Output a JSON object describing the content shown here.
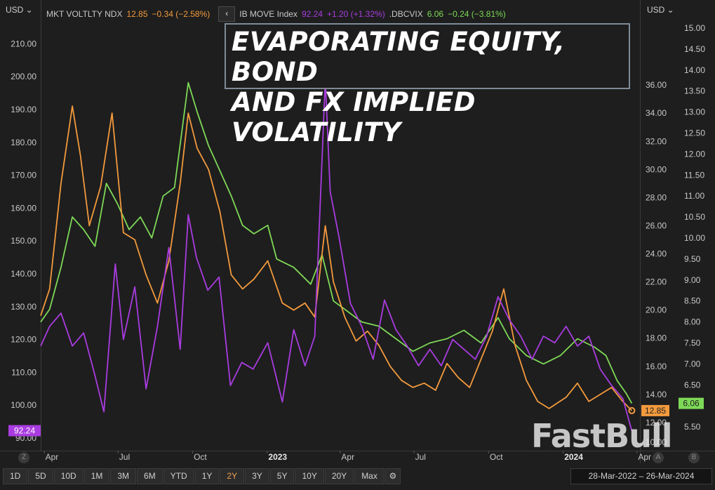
{
  "header": {
    "unit_left": "USD",
    "unit_right": "USD",
    "legend": [
      {
        "name": "MKT VOLTLTY NDX",
        "value": "12.85",
        "change": "−0.34 (−2.58%)",
        "color": "#f39a3d"
      },
      {
        "name": "IB MOVE Index",
        "value": "92.24",
        "change": "+1.20 (+1.32%)",
        "color": "#a93ce0"
      },
      {
        "name": ".DBCVIX",
        "value": "6.06",
        "change": "−0.24 (−3.81%)",
        "color": "#7ed957"
      }
    ],
    "collapse_icon": "chevron-left-icon"
  },
  "title_lines": [
    "EVAPORATING EQUITY, BOND",
    "AND FX IMPLIED VOLATILITY"
  ],
  "watermark": "FastBull",
  "price_tags": {
    "move": "92.24",
    "ndx": "12.85",
    "vix": "6.06"
  },
  "toolbar": {
    "buttons": [
      "1D",
      "5D",
      "10D",
      "1M",
      "3M",
      "6M",
      "YTD",
      "1Y",
      "2Y",
      "3Y",
      "5Y",
      "10Y",
      "20Y",
      "Max"
    ],
    "active": "2Y",
    "gear_icon": "gear-icon",
    "date_range": "28-Mar-2022  –  26-Mar-2024"
  },
  "corner_labels": {
    "left": "Z",
    "a": "A",
    "b": "B"
  },
  "colors": {
    "ndx": "#f39a3d",
    "move": "#a93ce0",
    "vix": "#7ed957",
    "background": "#1e1e1e"
  },
  "chart_data": {
    "type": "line",
    "x_tick_labels": [
      "Apr",
      "Jul",
      "Oct",
      "2023",
      "Apr",
      "Jul",
      "Oct",
      "2024",
      "Apr"
    ],
    "x_tick_dates": [
      "2022-04-01",
      "2022-07-01",
      "2022-10-01",
      "2023-01-01",
      "2023-04-01",
      "2023-07-01",
      "2023-10-01",
      "2024-01-01",
      "2024-04-01"
    ],
    "xlim": [
      "2022-03-28",
      "2024-04-05"
    ],
    "axes": {
      "move": {
        "ylim": [
          87,
          218
        ],
        "ticks": [
          90,
          100,
          110,
          120,
          130,
          140,
          150,
          160,
          170,
          180,
          190,
          200,
          210
        ]
      },
      "ndx": {
        "ylim": [
          10.2,
          40.8
        ],
        "ticks": [
          12,
          14,
          16,
          18,
          20,
          22,
          24,
          26,
          28,
          30,
          32,
          34,
          36
        ]
      },
      "vix": {
        "ylim": [
          5.0,
          15.25
        ],
        "ticks": [
          5.5,
          6.0,
          6.5,
          7.0,
          7.5,
          8.0,
          8.5,
          9.0,
          9.5,
          10.0,
          10.5,
          11.0,
          11.5,
          12.0,
          12.5,
          13.0,
          13.5,
          14.0,
          14.5,
          15.0
        ]
      },
      "overlap_tick_label": "10.00"
    },
    "series": [
      {
        "name": "IB MOVE Index",
        "key": "move",
        "points": [
          [
            "2022-03-28",
            118
          ],
          [
            "2022-04-08",
            124
          ],
          [
            "2022-04-22",
            128
          ],
          [
            "2022-05-06",
            118
          ],
          [
            "2022-05-20",
            122
          ],
          [
            "2022-06-03",
            109
          ],
          [
            "2022-06-14",
            98
          ],
          [
            "2022-06-28",
            143
          ],
          [
            "2022-07-08",
            120
          ],
          [
            "2022-07-22",
            136
          ],
          [
            "2022-08-05",
            105
          ],
          [
            "2022-08-19",
            124
          ],
          [
            "2022-09-02",
            148
          ],
          [
            "2022-09-16",
            117
          ],
          [
            "2022-09-26",
            158
          ],
          [
            "2022-10-06",
            145
          ],
          [
            "2022-10-20",
            135
          ],
          [
            "2022-11-03",
            139
          ],
          [
            "2022-11-17",
            106
          ],
          [
            "2022-12-01",
            113
          ],
          [
            "2022-12-15",
            111
          ],
          [
            "2023-01-02",
            119
          ],
          [
            "2023-01-20",
            101
          ],
          [
            "2023-02-03",
            123
          ],
          [
            "2023-02-17",
            112
          ],
          [
            "2023-03-01",
            121
          ],
          [
            "2023-03-14",
            199
          ],
          [
            "2023-03-20",
            165
          ],
          [
            "2023-03-31",
            151
          ],
          [
            "2023-04-14",
            131
          ],
          [
            "2023-04-28",
            124
          ],
          [
            "2023-05-12",
            114
          ],
          [
            "2023-05-26",
            132
          ],
          [
            "2023-06-09",
            123
          ],
          [
            "2023-06-23",
            118
          ],
          [
            "2023-07-07",
            112
          ],
          [
            "2023-07-21",
            117
          ],
          [
            "2023-08-04",
            112
          ],
          [
            "2023-08-18",
            120
          ],
          [
            "2023-09-01",
            117
          ],
          [
            "2023-09-15",
            114
          ],
          [
            "2023-09-29",
            121
          ],
          [
            "2023-10-13",
            133
          ],
          [
            "2023-10-27",
            126
          ],
          [
            "2023-11-10",
            121
          ],
          [
            "2023-11-24",
            114
          ],
          [
            "2023-12-08",
            121
          ],
          [
            "2023-12-22",
            119
          ],
          [
            "2024-01-05",
            124
          ],
          [
            "2024-01-19",
            118
          ],
          [
            "2024-02-02",
            121
          ],
          [
            "2024-02-16",
            111
          ],
          [
            "2024-03-01",
            106
          ],
          [
            "2024-03-15",
            102
          ],
          [
            "2024-03-26",
            92.24
          ]
        ]
      },
      {
        "name": "MKT VOLTLTY NDX",
        "key": "ndx",
        "points": [
          [
            "2022-03-28",
            19.6
          ],
          [
            "2022-04-08",
            21.5
          ],
          [
            "2022-04-22",
            29
          ],
          [
            "2022-05-06",
            34.5
          ],
          [
            "2022-05-16",
            31
          ],
          [
            "2022-05-27",
            26
          ],
          [
            "2022-06-10",
            28.8
          ],
          [
            "2022-06-24",
            34
          ],
          [
            "2022-07-08",
            25.5
          ],
          [
            "2022-07-22",
            25
          ],
          [
            "2022-08-05",
            22.5
          ],
          [
            "2022-08-19",
            20.5
          ],
          [
            "2022-09-02",
            23.5
          ],
          [
            "2022-09-16",
            29
          ],
          [
            "2022-09-26",
            34
          ],
          [
            "2022-10-07",
            31.5
          ],
          [
            "2022-10-21",
            30
          ],
          [
            "2022-11-04",
            27
          ],
          [
            "2022-11-18",
            22.5
          ],
          [
            "2022-12-02",
            21.5
          ],
          [
            "2022-12-16",
            22.2
          ],
          [
            "2023-01-02",
            23.5
          ],
          [
            "2023-01-20",
            20.5
          ],
          [
            "2023-02-03",
            20
          ],
          [
            "2023-02-17",
            20.5
          ],
          [
            "2023-03-01",
            19.5
          ],
          [
            "2023-03-14",
            26
          ],
          [
            "2023-03-24",
            22
          ],
          [
            "2023-04-07",
            19.5
          ],
          [
            "2023-04-21",
            17.8
          ],
          [
            "2023-05-05",
            18.5
          ],
          [
            "2023-05-19",
            17.5
          ],
          [
            "2023-06-02",
            16
          ],
          [
            "2023-06-16",
            15
          ],
          [
            "2023-06-30",
            14.5
          ],
          [
            "2023-07-14",
            14.8
          ],
          [
            "2023-07-28",
            14.3
          ],
          [
            "2023-08-11",
            16.2
          ],
          [
            "2023-08-25",
            15.2
          ],
          [
            "2023-09-08",
            14.5
          ],
          [
            "2023-09-22",
            16.5
          ],
          [
            "2023-10-06",
            18.5
          ],
          [
            "2023-10-20",
            21.5
          ],
          [
            "2023-11-03",
            17.5
          ],
          [
            "2023-11-17",
            15
          ],
          [
            "2023-12-01",
            13.5
          ],
          [
            "2023-12-15",
            13
          ],
          [
            "2024-01-05",
            13.8
          ],
          [
            "2024-01-19",
            14.8
          ],
          [
            "2024-02-02",
            13.5
          ],
          [
            "2024-02-16",
            14
          ],
          [
            "2024-03-01",
            14.5
          ],
          [
            "2024-03-15",
            13.5
          ],
          [
            "2024-03-26",
            12.85
          ]
        ]
      },
      {
        "name": ".DBCVIX",
        "key": "vix",
        "points": [
          [
            "2022-03-28",
            8.0
          ],
          [
            "2022-04-08",
            8.3
          ],
          [
            "2022-04-22",
            9.3
          ],
          [
            "2022-05-06",
            10.5
          ],
          [
            "2022-05-20",
            10.2
          ],
          [
            "2022-06-03",
            9.8
          ],
          [
            "2022-06-17",
            11.3
          ],
          [
            "2022-07-01",
            10.8
          ],
          [
            "2022-07-15",
            10.2
          ],
          [
            "2022-07-29",
            10.5
          ],
          [
            "2022-08-12",
            10.0
          ],
          [
            "2022-08-26",
            11.0
          ],
          [
            "2022-09-09",
            11.2
          ],
          [
            "2022-09-26",
            13.7
          ],
          [
            "2022-10-07",
            13.0
          ],
          [
            "2022-10-21",
            12.2
          ],
          [
            "2022-11-04",
            11.6
          ],
          [
            "2022-11-18",
            11.0
          ],
          [
            "2022-12-02",
            10.3
          ],
          [
            "2022-12-16",
            10.1
          ],
          [
            "2023-01-02",
            10.3
          ],
          [
            "2023-01-13",
            9.5
          ],
          [
            "2023-02-03",
            9.3
          ],
          [
            "2023-02-24",
            8.9
          ],
          [
            "2023-03-10",
            9.6
          ],
          [
            "2023-03-24",
            8.5
          ],
          [
            "2023-04-07",
            8.3
          ],
          [
            "2023-04-28",
            8.0
          ],
          [
            "2023-05-19",
            7.9
          ],
          [
            "2023-06-09",
            7.6
          ],
          [
            "2023-06-30",
            7.3
          ],
          [
            "2023-07-21",
            7.5
          ],
          [
            "2023-08-11",
            7.6
          ],
          [
            "2023-09-01",
            7.8
          ],
          [
            "2023-09-22",
            7.5
          ],
          [
            "2023-10-13",
            8.1
          ],
          [
            "2023-10-27",
            7.6
          ],
          [
            "2023-11-17",
            7.2
          ],
          [
            "2023-12-08",
            7.0
          ],
          [
            "2023-12-29",
            7.2
          ],
          [
            "2024-01-19",
            7.6
          ],
          [
            "2024-02-09",
            7.4
          ],
          [
            "2024-02-23",
            7.2
          ],
          [
            "2024-03-08",
            6.6
          ],
          [
            "2024-03-19",
            6.3
          ],
          [
            "2024-03-26",
            6.06
          ]
        ]
      }
    ]
  }
}
